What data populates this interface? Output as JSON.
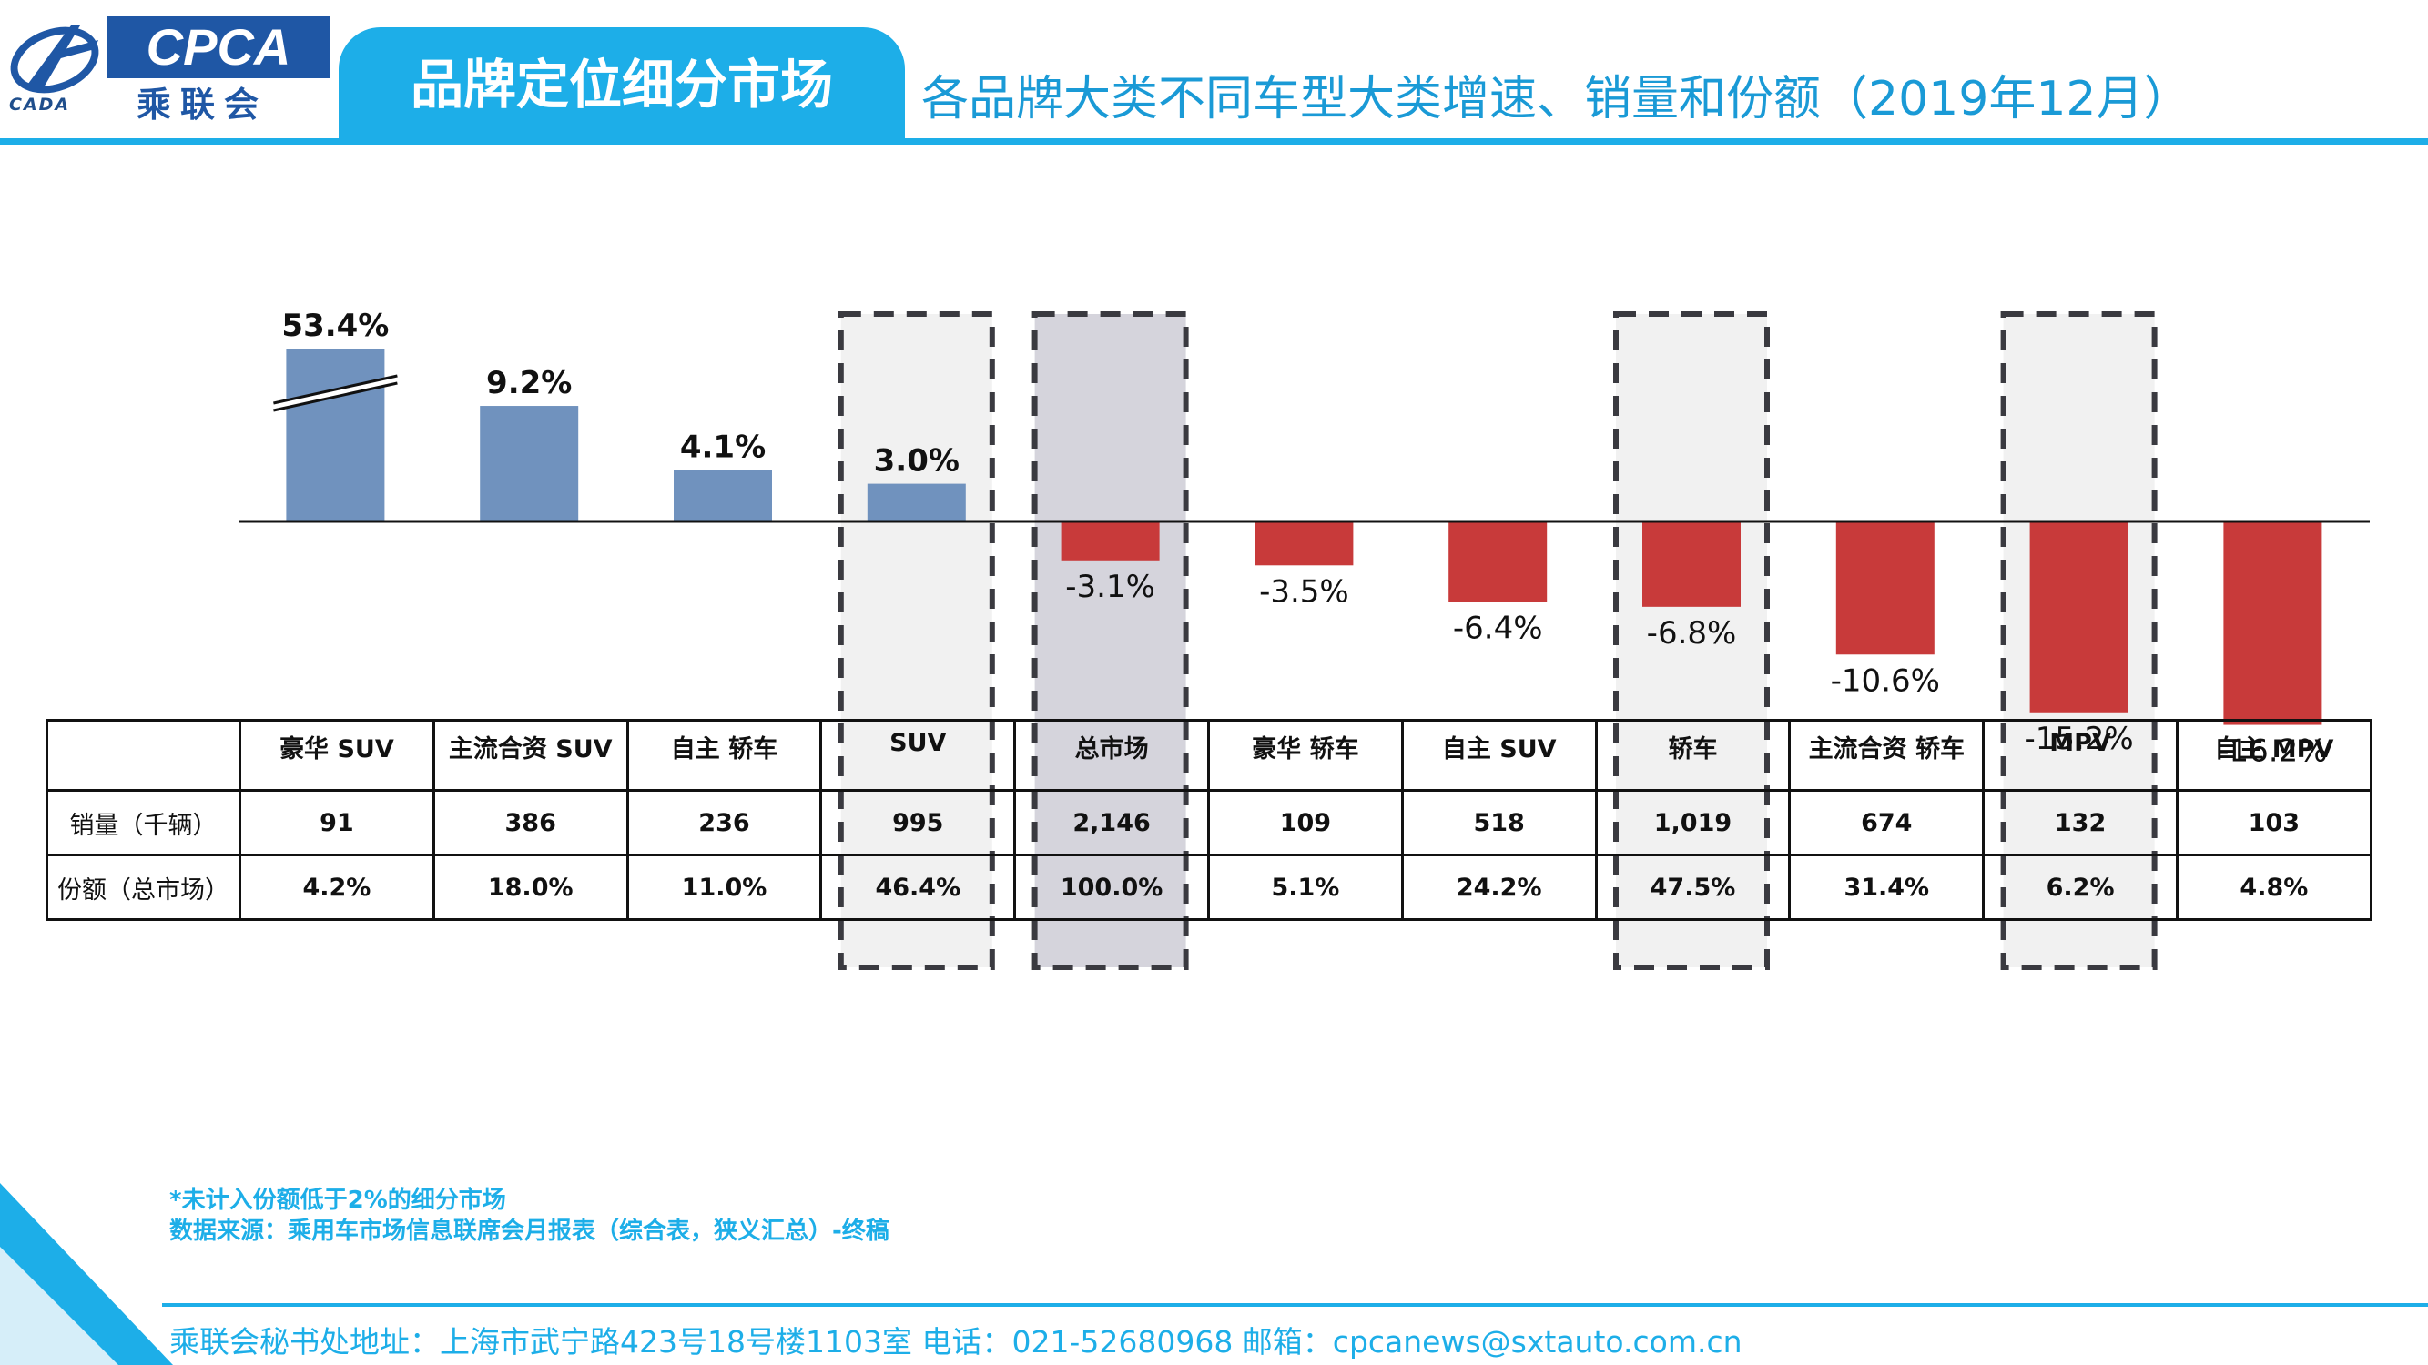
{
  "header": {
    "logo_en": "CPCA",
    "logo_cn": "乘联会",
    "logo_sub": "CADA",
    "section_title": "品牌定位细分市场",
    "subtitle": "各品牌大类不同车型大类增速、销量和份额（2019年12月）"
  },
  "colors": {
    "positive_bar": "#7092be",
    "negative_bar": "#c83a3a",
    "accent": "#1daee8",
    "highlight_dark": "#d5d4dc",
    "highlight_light": "#f1f1f1"
  },
  "chart_data": {
    "type": "bar",
    "categories": [
      "豪华 SUV",
      "主流合资 SUV",
      "自主 轿车",
      "SUV",
      "总市场",
      "豪华 轿车",
      "自主 SUV",
      "轿车",
      "主流合资 轿车",
      "MPV",
      "自主 MPV"
    ],
    "values": [
      53.4,
      9.2,
      4.1,
      3.0,
      -3.1,
      -3.5,
      -6.4,
      -6.8,
      -10.6,
      -15.2,
      -16.2
    ],
    "value_labels": [
      "53.4%",
      "9.2%",
      "4.1%",
      "3.0%",
      "-3.1%",
      "-3.5%",
      "-6.4%",
      "-6.8%",
      "-10.6%",
      "-15.2%",
      "-16.2%"
    ],
    "axis_break": [
      0
    ],
    "highlighted": [
      3,
      4,
      7,
      9
    ],
    "highlight_strong": [
      4
    ]
  },
  "table": {
    "headers": [
      "豪华 SUV",
      "主流合资 SUV",
      "自主 轿车",
      "SUV",
      "总市场",
      "豪华 轿车",
      "自主 SUV",
      "轿车",
      "主流合资 轿车",
      "MPV",
      "自主 MPV"
    ],
    "rows": [
      {
        "label": "销量（千辆）",
        "values": [
          "91",
          "386",
          "236",
          "995",
          "2,146",
          "109",
          "518",
          "1,019",
          "674",
          "132",
          "103"
        ]
      },
      {
        "label": "份额（总市场）",
        "values": [
          "4.2%",
          "18.0%",
          "11.0%",
          "46.4%",
          "100.0%",
          "5.1%",
          "24.2%",
          "47.5%",
          "31.4%",
          "6.2%",
          "4.8%"
        ]
      }
    ]
  },
  "footnotes": {
    "note1": "*未计入份额低于2%的细分市场",
    "note2": "数据来源：乘用车市场信息联席会月报表（综合表，狭义汇总）-终稿"
  },
  "footer": {
    "contact": "乘联会秘书处地址：上海市武宁路423号18号楼1103室  电话：021-52680968   邮箱：cpcanews@sxtauto.com.cn"
  }
}
